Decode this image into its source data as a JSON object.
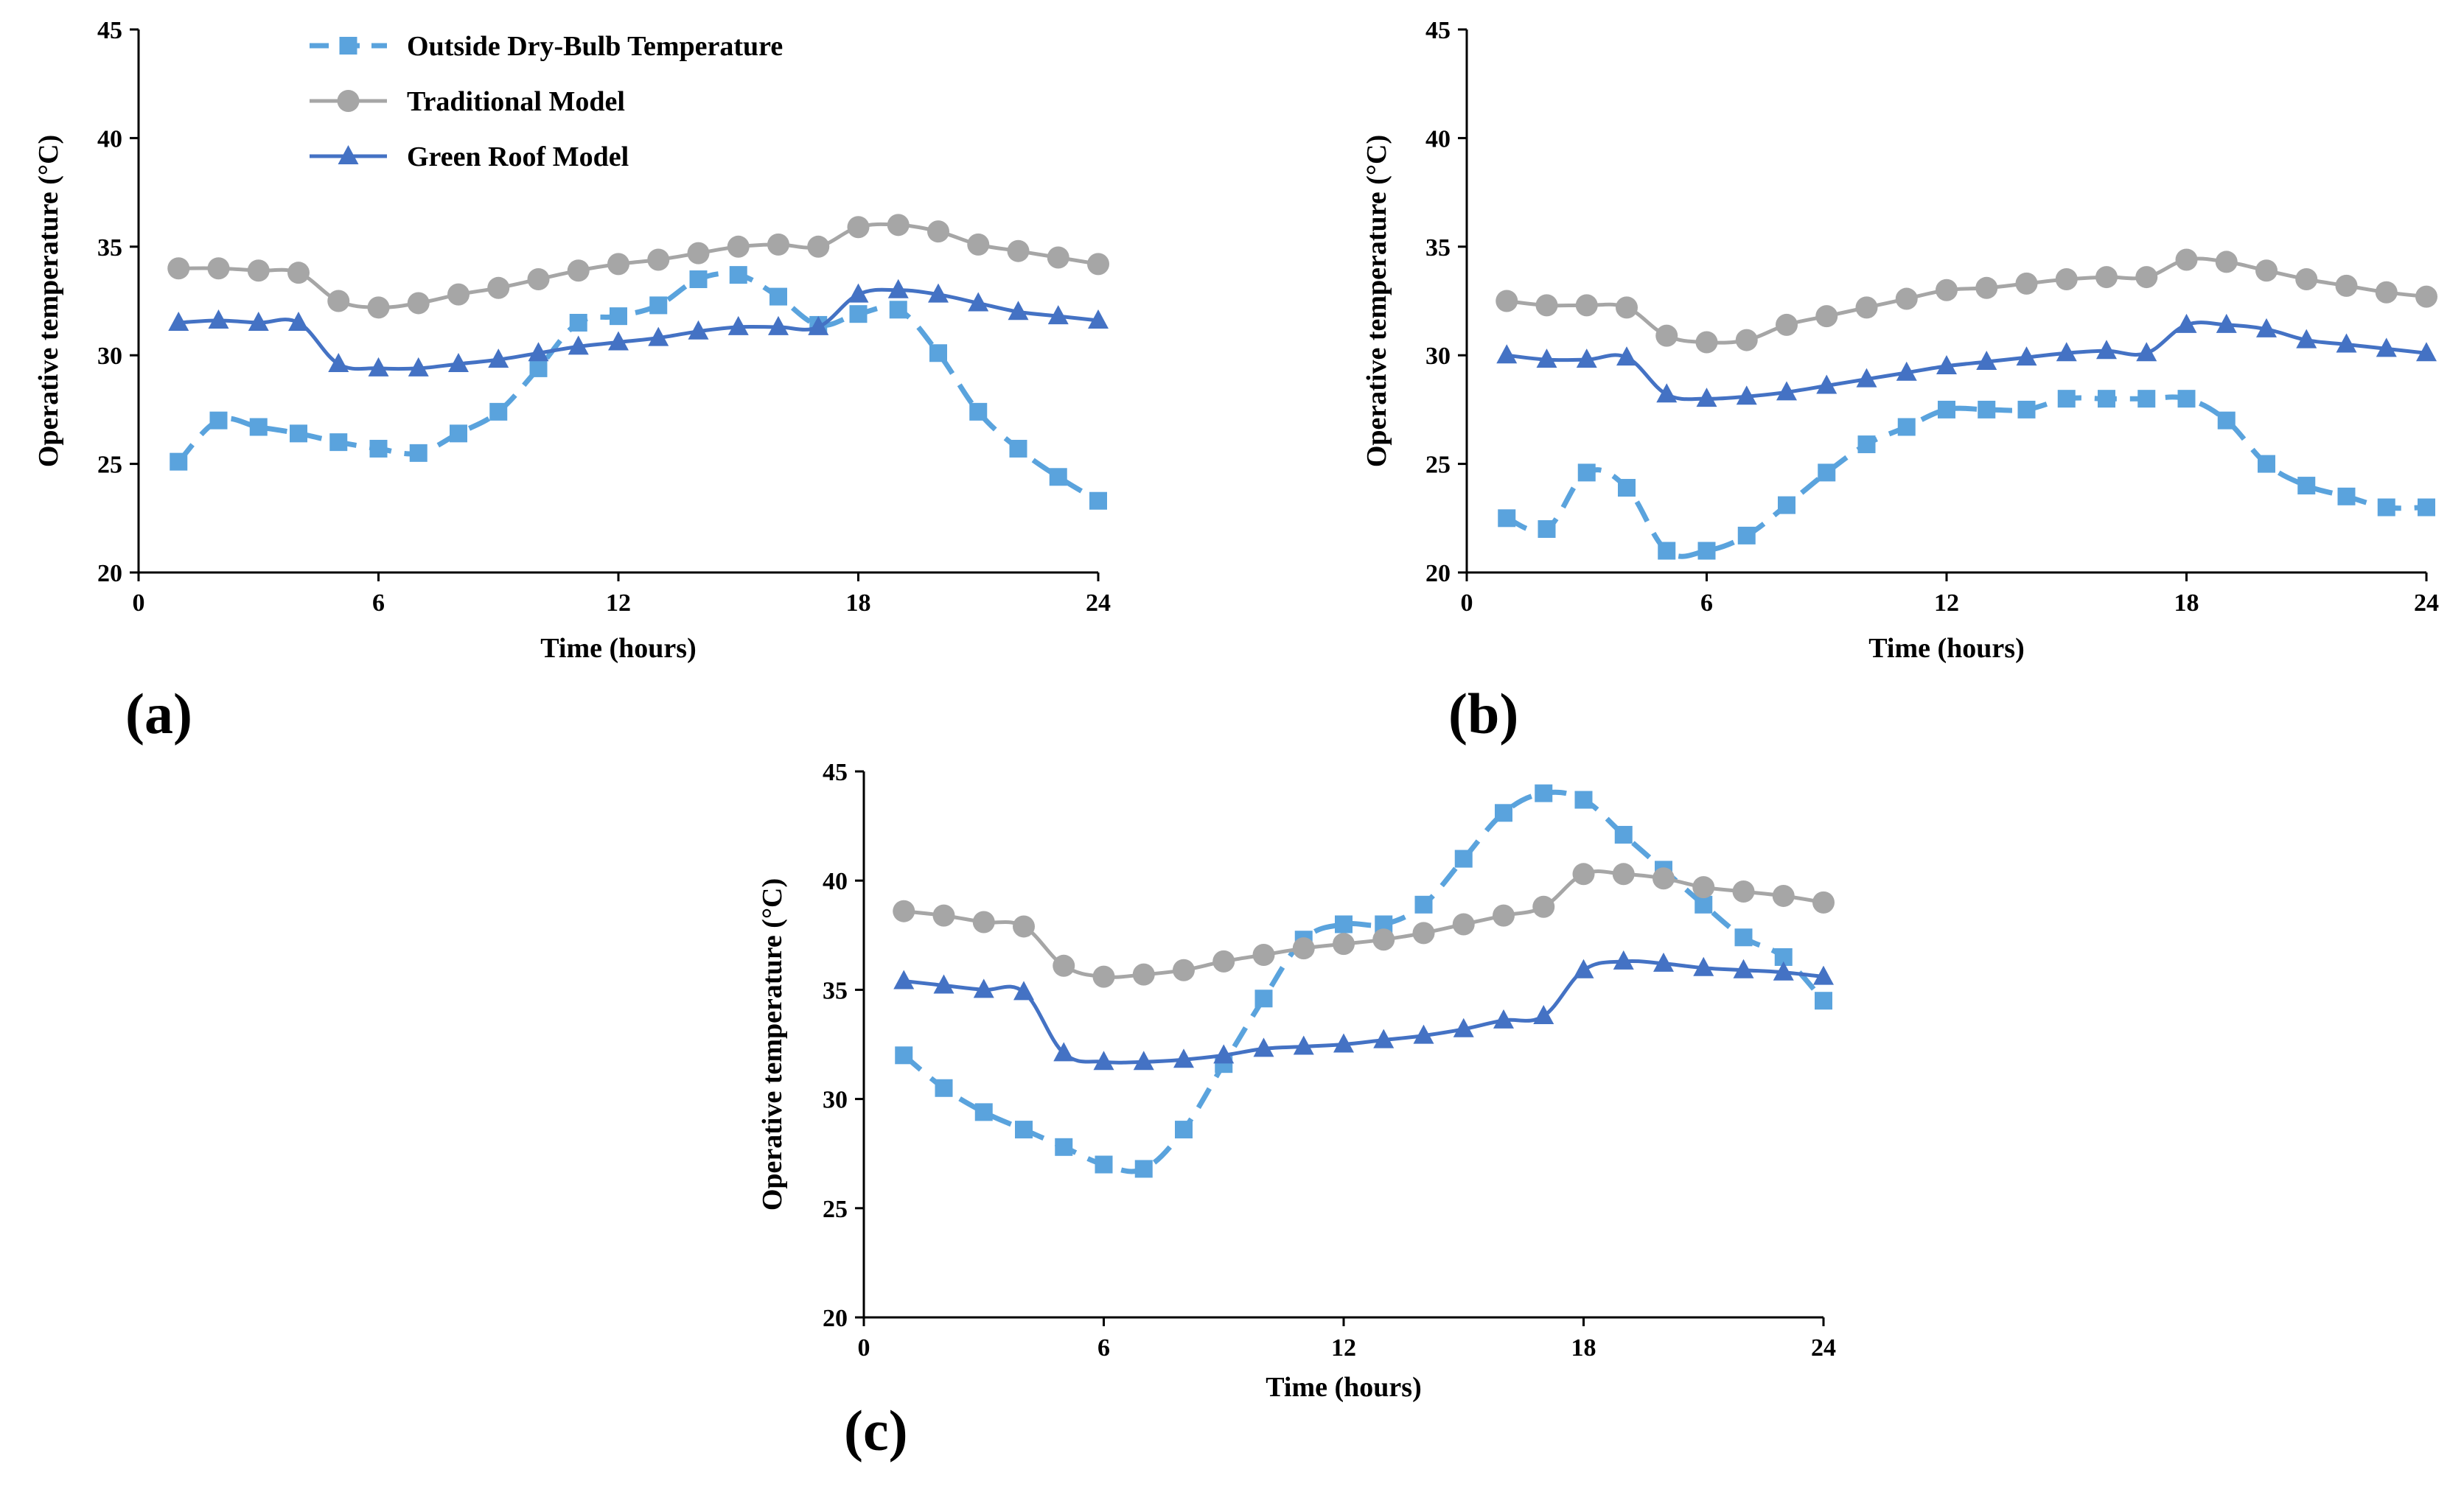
{
  "colors": {
    "outside": "#5aa3dd",
    "traditional": "#a6a6a6",
    "green_roof": "#4472c4",
    "axis": "#000000"
  },
  "legend": {
    "outside": "Outside Dry-Bulb Temperature",
    "traditional": "Traditional Model",
    "green_roof": "Green Roof Model"
  },
  "chart_data": [
    {
      "type": "line",
      "panel_label": "(a)",
      "xlabel": "Time (hours)",
      "ylabel": "Operative temperature (°C)",
      "xlim": [
        0,
        24
      ],
      "ylim": [
        20,
        45
      ],
      "x_ticks": [
        "0",
        "6",
        "12",
        "18",
        "24"
      ],
      "y_ticks": [
        "20",
        "25",
        "30",
        "35",
        "40",
        "45"
      ],
      "grid": false,
      "legend_position": "top-left",
      "x": [
        1,
        2,
        3,
        4,
        5,
        6,
        7,
        8,
        9,
        10,
        11,
        12,
        13,
        14,
        15,
        16,
        17,
        18,
        19,
        20,
        21,
        22,
        23,
        24
      ],
      "series": [
        {
          "name": "Outside Dry-Bulb Temperature",
          "key": "outside",
          "values": [
            25.1,
            27.0,
            26.7,
            26.4,
            26.0,
            25.7,
            25.5,
            26.4,
            27.4,
            29.4,
            31.5,
            31.8,
            32.3,
            33.5,
            33.7,
            32.7,
            31.4,
            31.9,
            32.1,
            30.1,
            27.4,
            25.7,
            24.4,
            23.3
          ]
        },
        {
          "name": "Traditional Model",
          "key": "traditional",
          "values": [
            34.0,
            34.0,
            33.9,
            33.8,
            32.5,
            32.2,
            32.4,
            32.8,
            33.1,
            33.5,
            33.9,
            34.2,
            34.4,
            34.7,
            35.0,
            35.1,
            35.0,
            35.9,
            36.0,
            35.7,
            35.1,
            34.8,
            34.5,
            34.2
          ]
        },
        {
          "name": "Green Roof Model",
          "key": "green_roof",
          "values": [
            31.5,
            31.6,
            31.5,
            31.5,
            29.6,
            29.4,
            29.4,
            29.6,
            29.8,
            30.1,
            30.4,
            30.6,
            30.8,
            31.1,
            31.3,
            31.3,
            31.3,
            32.8,
            33.0,
            32.8,
            32.4,
            32.0,
            31.8,
            31.6
          ]
        }
      ]
    },
    {
      "type": "line",
      "panel_label": "(b)",
      "xlabel": "Time (hours)",
      "ylabel": "Operative temperature (°C)",
      "xlim": [
        0,
        24
      ],
      "ylim": [
        20,
        45
      ],
      "x_ticks": [
        "0",
        "6",
        "12",
        "18",
        "24"
      ],
      "y_ticks": [
        "20",
        "25",
        "30",
        "35",
        "40",
        "45"
      ],
      "grid": false,
      "x": [
        1,
        2,
        3,
        4,
        5,
        6,
        7,
        8,
        9,
        10,
        11,
        12,
        13,
        14,
        15,
        16,
        17,
        18,
        19,
        20,
        21,
        22,
        23,
        24
      ],
      "series": [
        {
          "name": "Outside Dry-Bulb Temperature",
          "key": "outside",
          "values": [
            22.5,
            22.0,
            24.6,
            23.9,
            21.0,
            21.0,
            21.7,
            23.1,
            24.6,
            25.9,
            26.7,
            27.5,
            27.5,
            27.5,
            28.0,
            28.0,
            28.0,
            28.0,
            27.0,
            25.0,
            24.0,
            23.5,
            23.0,
            23.0
          ]
        },
        {
          "name": "Traditional Model",
          "key": "traditional",
          "values": [
            32.5,
            32.3,
            32.3,
            32.2,
            30.9,
            30.6,
            30.7,
            31.4,
            31.8,
            32.2,
            32.6,
            33.0,
            33.1,
            33.3,
            33.5,
            33.6,
            33.6,
            34.4,
            34.3,
            33.9,
            33.5,
            33.2,
            32.9,
            32.7
          ]
        },
        {
          "name": "Green Roof Model",
          "key": "green_roof",
          "values": [
            30.0,
            29.8,
            29.8,
            29.9,
            28.2,
            28.0,
            28.1,
            28.3,
            28.6,
            28.9,
            29.2,
            29.5,
            29.7,
            29.9,
            30.1,
            30.2,
            30.1,
            31.4,
            31.4,
            31.2,
            30.7,
            30.5,
            30.3,
            30.1
          ]
        }
      ]
    },
    {
      "type": "line",
      "panel_label": "(c)",
      "xlabel": "Time (hours)",
      "ylabel": "Operative temperature (°C)",
      "xlim": [
        0,
        24
      ],
      "ylim": [
        20,
        45
      ],
      "x_ticks": [
        "0",
        "6",
        "12",
        "18",
        "24"
      ],
      "y_ticks": [
        "20",
        "25",
        "30",
        "35",
        "40",
        "45"
      ],
      "grid": false,
      "x": [
        1,
        2,
        3,
        4,
        5,
        6,
        7,
        8,
        9,
        10,
        11,
        12,
        13,
        14,
        15,
        16,
        17,
        18,
        19,
        20,
        21,
        22,
        23,
        24
      ],
      "series": [
        {
          "name": "Outside Dry-Bulb Temperature",
          "key": "outside",
          "values": [
            32.0,
            30.5,
            29.4,
            28.6,
            27.8,
            27.0,
            26.8,
            28.6,
            31.6,
            34.6,
            37.3,
            38.0,
            38.0,
            38.9,
            41.0,
            43.1,
            44.0,
            43.7,
            42.1,
            40.5,
            38.9,
            37.4,
            36.5,
            34.5
          ]
        },
        {
          "name": "Traditional Model",
          "key": "traditional",
          "values": [
            38.6,
            38.4,
            38.1,
            37.9,
            36.1,
            35.6,
            35.7,
            35.9,
            36.3,
            36.6,
            36.9,
            37.1,
            37.3,
            37.6,
            38.0,
            38.4,
            38.8,
            40.3,
            40.3,
            40.1,
            39.7,
            39.5,
            39.3,
            39.0
          ]
        },
        {
          "name": "Green Roof Model",
          "key": "green_roof",
          "values": [
            35.4,
            35.2,
            35.0,
            34.9,
            32.1,
            31.7,
            31.7,
            31.8,
            32.0,
            32.3,
            32.4,
            32.5,
            32.7,
            32.9,
            33.2,
            33.6,
            33.8,
            35.9,
            36.3,
            36.2,
            36.0,
            35.9,
            35.8,
            35.6
          ]
        }
      ]
    }
  ]
}
